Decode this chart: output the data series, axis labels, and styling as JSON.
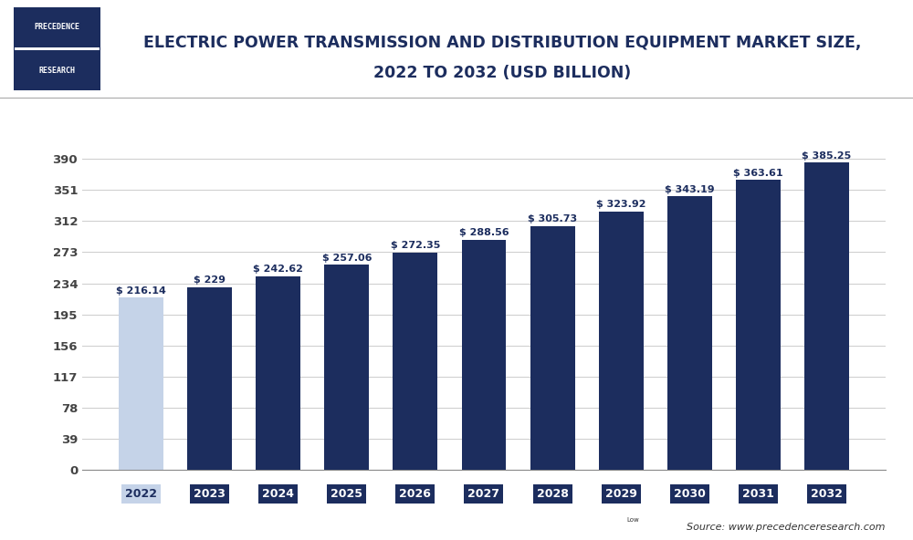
{
  "title_line1": "ELECTRIC POWER TRANSMISSION AND DISTRIBUTION EQUIPMENT MARKET SIZE,",
  "title_line2": "2022 TO 2032 (USD BILLION)",
  "categories": [
    "2022",
    "2023",
    "2024",
    "2025",
    "2026",
    "2027",
    "2028",
    "2029",
    "2030",
    "2031",
    "2032"
  ],
  "values": [
    216.14,
    229,
    242.62,
    257.06,
    272.35,
    288.56,
    305.73,
    323.92,
    343.19,
    363.61,
    385.25
  ],
  "labels": [
    "$ 216.14",
    "$ 229",
    "$ 242.62",
    "$ 257.06",
    "$ 272.35",
    "$ 288.56",
    "$ 305.73",
    "$ 323.92",
    "$ 343.19",
    "$ 363.61",
    "$ 385.25"
  ],
  "bar_colors": [
    "#c5d3e8",
    "#1c2d5e",
    "#1c2d5e",
    "#1c2d5e",
    "#1c2d5e",
    "#1c2d5e",
    "#1c2d5e",
    "#1c2d5e",
    "#1c2d5e",
    "#1c2d5e",
    "#1c2d5e"
  ],
  "xtick_bg_colors": [
    "#c5d3e8",
    "#1c2d5e",
    "#1c2d5e",
    "#1c2d5e",
    "#1c2d5e",
    "#1c2d5e",
    "#1c2d5e",
    "#1c2d5e",
    "#1c2d5e",
    "#1c2d5e",
    "#1c2d5e"
  ],
  "xtick_text_colors": [
    "#1c2d5e",
    "#ffffff",
    "#ffffff",
    "#ffffff",
    "#ffffff",
    "#ffffff",
    "#ffffff",
    "#ffffff",
    "#ffffff",
    "#ffffff",
    "#ffffff"
  ],
  "yticks": [
    0,
    39,
    78,
    117,
    156,
    195,
    234,
    273,
    312,
    351,
    390
  ],
  "ylim": [
    0,
    420
  ],
  "background_color": "#ffffff",
  "grid_color": "#cccccc",
  "title_color": "#1c2d5e",
  "source_text": "Source: www.precedenceresearch.com",
  "logo_line1": "PRECEDENCE",
  "logo_line2": "RESEARCH",
  "logo_bg": "#1c2d5e",
  "logo_border": "#1c2d5e"
}
